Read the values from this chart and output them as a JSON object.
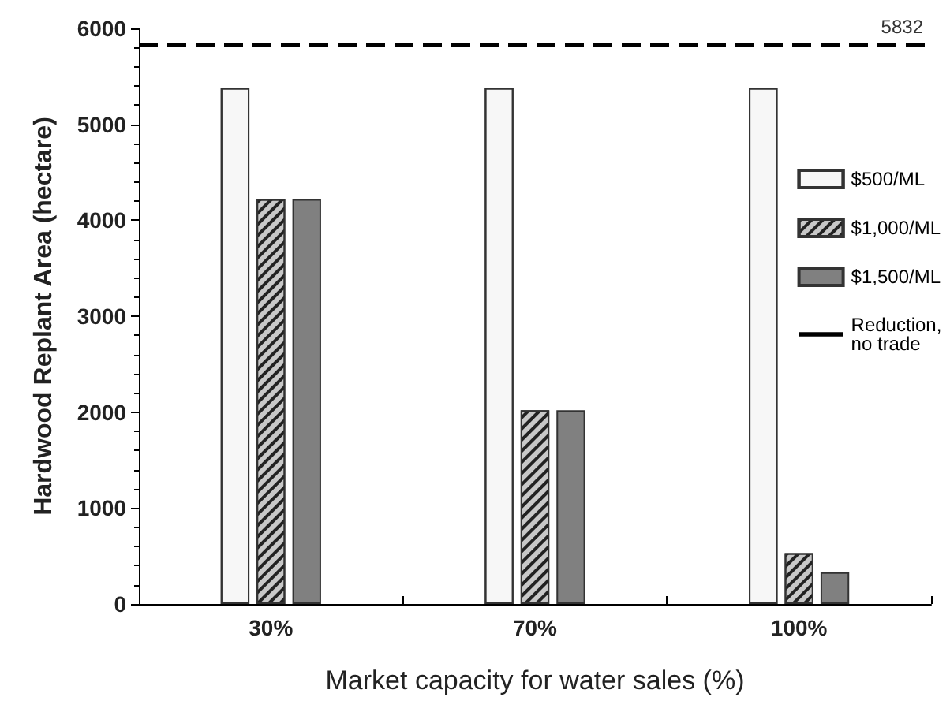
{
  "chart_data": {
    "type": "bar",
    "xlabel": "Market capacity for water sales (%)",
    "ylabel": "Hardwood Replant Area (hectare)",
    "categories": [
      "30%",
      "70%",
      "100%"
    ],
    "series": [
      {
        "name": "$500/ML",
        "color": "#f7f7f7",
        "values": [
          5380,
          5380,
          5380
        ]
      },
      {
        "name": "$1,000/ML",
        "color": "#c8c8c8",
        "values": [
          4220,
          2020,
          530
        ]
      },
      {
        "name": "$1,500/ML",
        "color": "#808080",
        "values": [
          4220,
          2020,
          330
        ]
      }
    ],
    "ylim": [
      0,
      6000
    ],
    "yticks": [
      0,
      1000,
      2000,
      3000,
      4000,
      5000,
      6000
    ],
    "ref_lines": [
      {
        "axis": "y",
        "value": 5832,
        "label": "Reduction, no trade",
        "color": "#000000",
        "line_style": "dashed"
      }
    ],
    "annotations": [
      {
        "text": "5832",
        "y": 5832
      }
    ],
    "grid": false,
    "legend": "right"
  }
}
